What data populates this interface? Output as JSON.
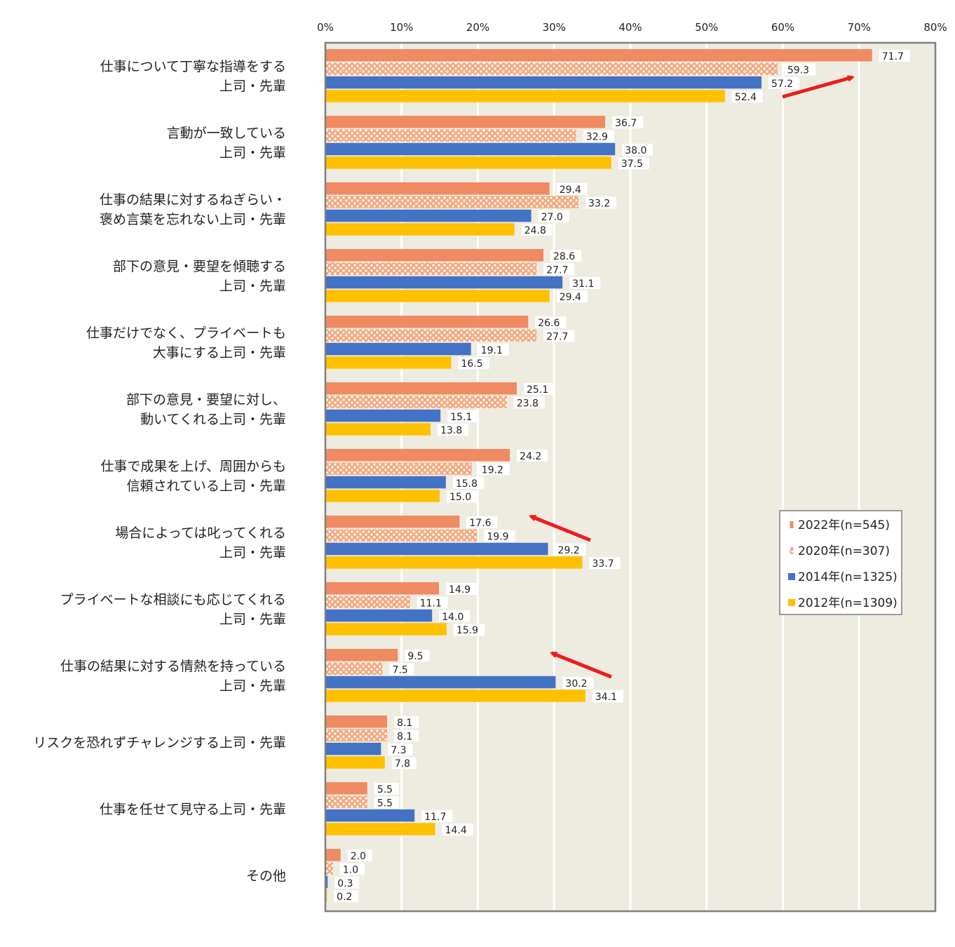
{
  "chart_data": {
    "type": "bar",
    "orientation": "horizontal",
    "xlim": [
      0,
      80
    ],
    "x_ticks": [
      "0%",
      "10%",
      "20%",
      "30%",
      "40%",
      "50%",
      "60%",
      "70%",
      "80%"
    ],
    "grid": true,
    "legend_position": "right-middle",
    "categories": [
      [
        "仕事について丁寧な指導をする",
        "上司・先輩"
      ],
      [
        "言動が一致している",
        "上司・先輩"
      ],
      [
        "仕事の結果に対するねぎらい・",
        "褒め言葉を忘れない上司・先輩"
      ],
      [
        "部下の意見・要望を傾聴する",
        "上司・先輩"
      ],
      [
        "仕事だけでなく、プライベートも",
        "大事にする上司・先輩"
      ],
      [
        "部下の意見・要望に対し、",
        "動いてくれる上司・先輩"
      ],
      [
        "仕事で成果を上げ、周囲からも",
        "信頼されている上司・先輩"
      ],
      [
        "場合によっては叱ってくれる",
        "上司・先輩"
      ],
      [
        "プライベートな相談にも応じてくれる",
        "上司・先輩"
      ],
      [
        "仕事の結果に対する情熱を持っている",
        "上司・先輩"
      ],
      [
        "リスクを恐れずチャレンジする上司・先輩"
      ],
      [
        "仕事を任せて見守る上司・先輩"
      ],
      [
        "その他"
      ]
    ],
    "series": [
      {
        "name": "2022年(n=545)",
        "color": "#f08a63",
        "pattern": "solid",
        "values": [
          71.7,
          36.7,
          29.4,
          28.6,
          26.6,
          25.1,
          24.2,
          17.6,
          14.9,
          9.5,
          8.1,
          5.5,
          2.0
        ]
      },
      {
        "name": "2020年(n=307)",
        "color": "#f4a97f",
        "pattern": "dots",
        "values": [
          59.3,
          32.9,
          33.2,
          27.7,
          27.7,
          23.8,
          19.2,
          19.9,
          11.1,
          7.5,
          8.1,
          5.5,
          1.0
        ]
      },
      {
        "name": "2014年(n=1325)",
        "color": "#4472c4",
        "pattern": "solid",
        "values": [
          57.2,
          38.0,
          27.0,
          31.1,
          19.1,
          15.1,
          15.8,
          29.2,
          14.0,
          30.2,
          7.3,
          11.7,
          0.3
        ]
      },
      {
        "name": "2012年(n=1309)",
        "color": "#ffc000",
        "pattern": "solid",
        "values": [
          52.4,
          37.5,
          24.8,
          29.4,
          16.5,
          13.8,
          15.0,
          33.7,
          15.9,
          34.1,
          7.8,
          14.4,
          0.2
        ]
      }
    ],
    "annotations": [
      {
        "type": "arrow",
        "color": "#ee1c1c",
        "direction": "up-right",
        "near_category": 0
      },
      {
        "type": "arrow",
        "color": "#ee1c1c",
        "direction": "up-left",
        "near_category": 7
      },
      {
        "type": "arrow",
        "color": "#ee1c1c",
        "direction": "up-left",
        "near_category": 9
      }
    ]
  },
  "colors": {
    "plot_background": "#eeece1",
    "grid_lines": "#ffffff",
    "frame": "#808080",
    "arrow": "#ee1c1c"
  }
}
